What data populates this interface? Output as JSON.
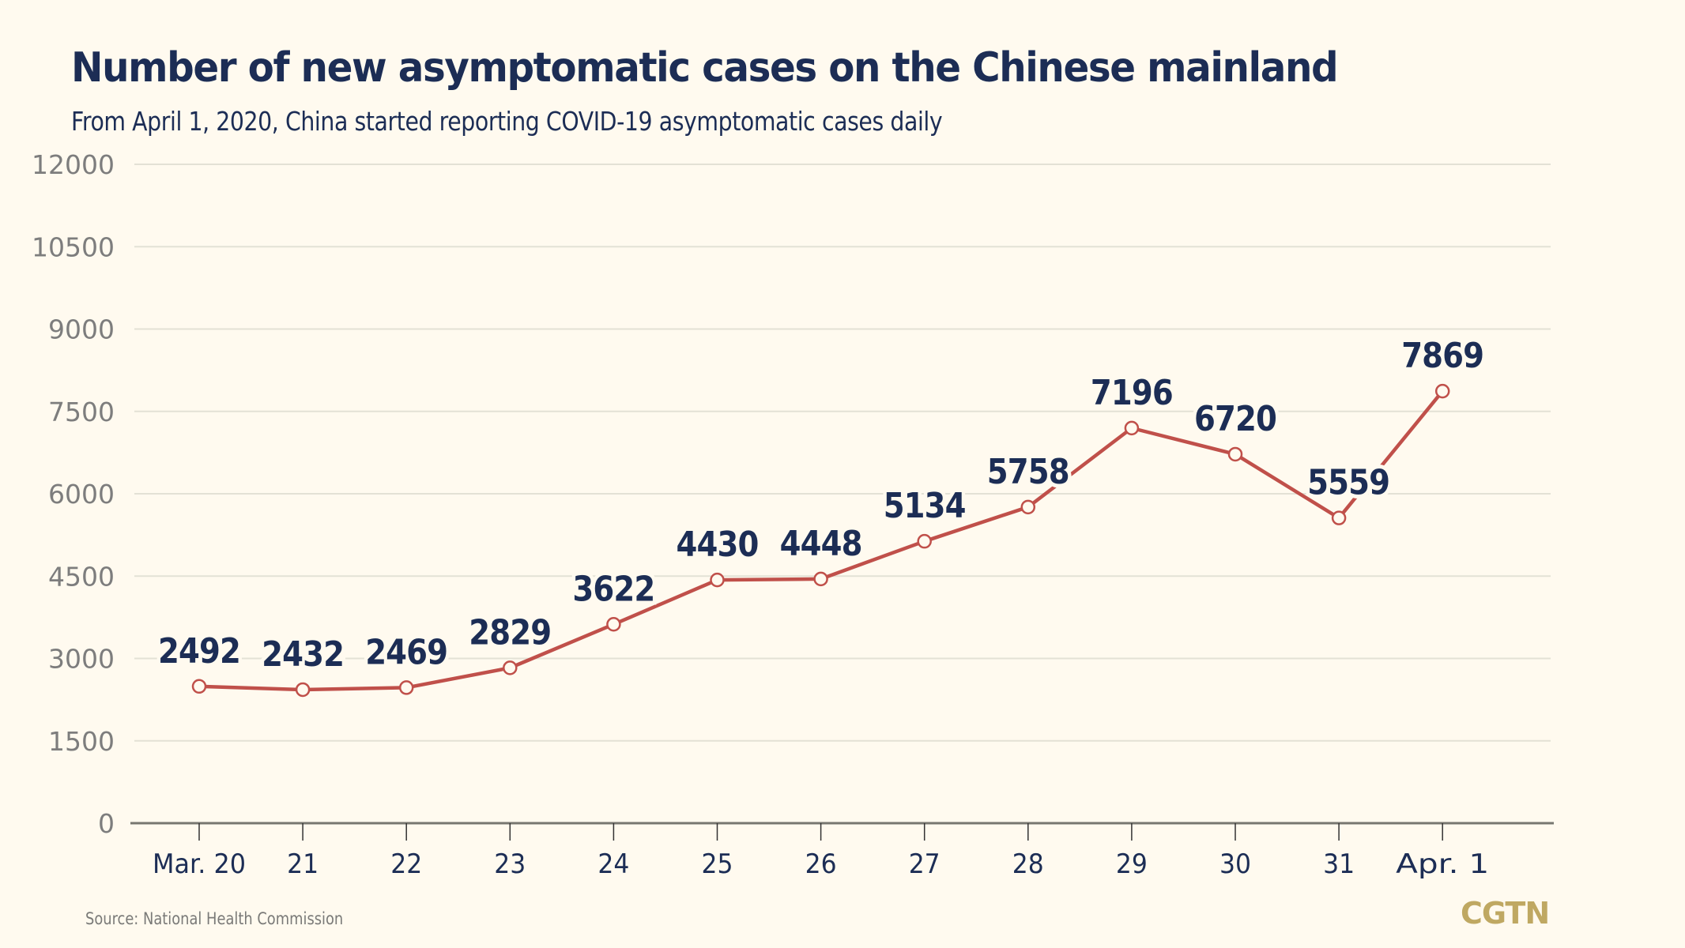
{
  "title": "Number of new asymptomatic cases on the Chinese mainland",
  "subtitle": "From April 1, 2020, China started reporting COVID-19 asymptomatic cases daily",
  "source": "Source: National Health Commission",
  "logo": "CGTN",
  "colors": {
    "background": "#fffaef",
    "text": "#1c2d55",
    "line": "#c0504a",
    "grid": "#e3e1d5",
    "axis": "#777770",
    "logo": "#bfa862"
  },
  "chart_data": {
    "type": "line",
    "title": "Number of new asymptomatic cases on the Chinese mainland",
    "subtitle": "From April 1, 2020, China started reporting COVID-19 asymptomatic cases daily",
    "xlabel": "",
    "ylabel": "",
    "categories": [
      "Mar. 20",
      "21",
      "22",
      "23",
      "24",
      "25",
      "26",
      "27",
      "28",
      "29",
      "30",
      "31",
      "Apr. 1"
    ],
    "series": [
      {
        "name": "New asymptomatic cases",
        "values": [
          2492,
          2432,
          2469,
          2829,
          3622,
          4430,
          4448,
          5134,
          5758,
          7196,
          6720,
          5559,
          7869
        ]
      }
    ],
    "ylim": [
      0,
      12000
    ],
    "yticks": [
      0,
      1500,
      3000,
      4500,
      6000,
      7500,
      9000,
      10500,
      12000
    ],
    "grid": true,
    "legend": "none",
    "data_labels": true
  }
}
